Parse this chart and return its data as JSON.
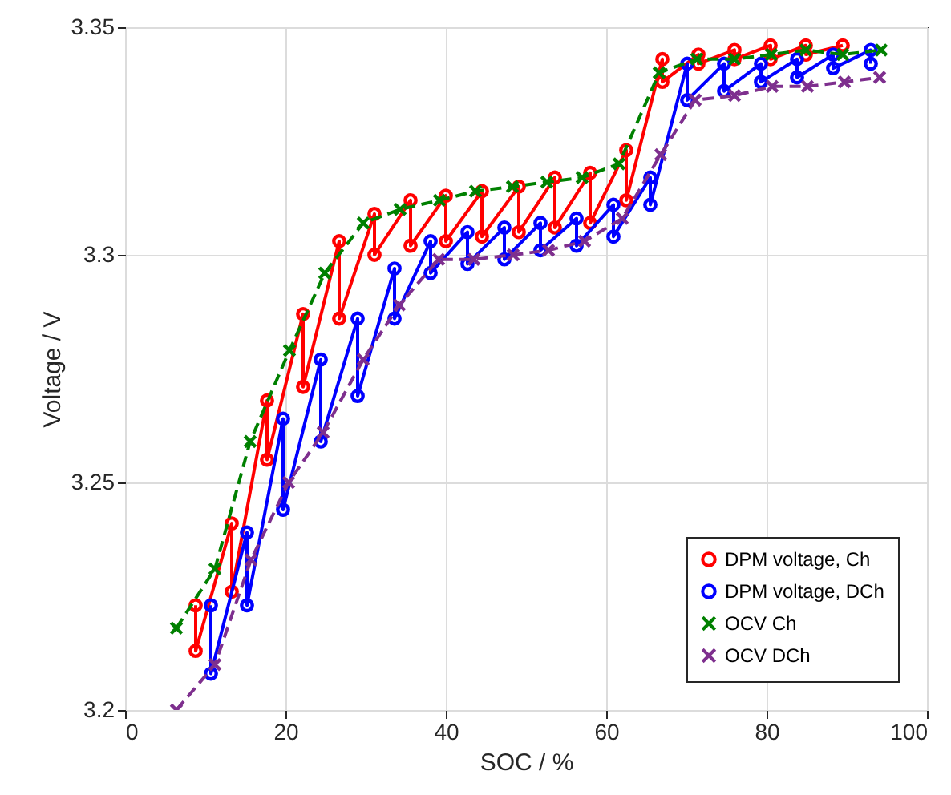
{
  "chart_data": {
    "type": "line",
    "xlabel": "SOC / %",
    "ylabel": "Voltage / V",
    "xlim": [
      0,
      100
    ],
    "xticks": [
      0,
      20,
      40,
      60,
      80,
      100
    ],
    "ylim": [
      3.2,
      3.35
    ],
    "yticks": [
      3.2,
      3.25,
      3.3,
      3.35
    ],
    "grid": true,
    "legend": "bottom right",
    "series": [
      {
        "name": "DPM voltage, Ch",
        "color": "#ff0000",
        "marker": "circle",
        "line_style": "solid",
        "x": [
          8.8,
          8.8,
          13.3,
          13.3,
          17.7,
          17.7,
          22.2,
          22.2,
          26.7,
          26.7,
          31.1,
          31.1,
          35.6,
          35.6,
          40.0,
          40.0,
          44.5,
          44.5,
          49.1,
          49.1,
          53.6,
          53.6,
          58.0,
          58.0,
          62.5,
          62.5,
          67.0,
          67.0,
          71.5,
          71.5,
          76.0,
          76.0,
          80.5,
          80.5,
          84.9,
          84.9,
          89.5
        ],
        "values": [
          3.223,
          3.213,
          3.241,
          3.226,
          3.268,
          3.255,
          3.287,
          3.271,
          3.303,
          3.286,
          3.309,
          3.3,
          3.312,
          3.302,
          3.313,
          3.303,
          3.314,
          3.304,
          3.315,
          3.305,
          3.317,
          3.306,
          3.318,
          3.307,
          3.323,
          3.312,
          3.343,
          3.338,
          3.344,
          3.342,
          3.345,
          3.343,
          3.346,
          3.343,
          3.346,
          3.344,
          3.346
        ]
      },
      {
        "name": "DPM voltage, DCh",
        "color": "#0000ff",
        "marker": "circle",
        "line_style": "solid",
        "x": [
          93.0,
          93.0,
          88.3,
          88.3,
          83.8,
          83.8,
          79.3,
          79.3,
          74.7,
          74.7,
          70.1,
          70.1,
          65.5,
          65.5,
          60.9,
          60.9,
          56.3,
          56.3,
          51.8,
          51.8,
          47.3,
          47.3,
          42.7,
          42.7,
          38.1,
          38.1,
          33.6,
          33.6,
          29.0,
          29.0,
          24.4,
          24.4,
          19.7,
          19.7,
          15.2,
          15.2,
          10.7,
          10.7
        ],
        "values": [
          3.342,
          3.345,
          3.341,
          3.344,
          3.339,
          3.343,
          3.338,
          3.342,
          3.336,
          3.342,
          3.334,
          3.342,
          3.311,
          3.317,
          3.304,
          3.311,
          3.302,
          3.308,
          3.301,
          3.307,
          3.299,
          3.306,
          3.298,
          3.305,
          3.296,
          3.303,
          3.286,
          3.297,
          3.269,
          3.286,
          3.259,
          3.277,
          3.244,
          3.264,
          3.223,
          3.239,
          3.208,
          3.223
        ]
      },
      {
        "name": "OCV Ch",
        "color": "#008000",
        "marker": "cross",
        "line_style": "dashed",
        "x": [
          6.4,
          11.2,
          15.6,
          20.5,
          24.9,
          29.7,
          34.3,
          39.2,
          43.7,
          48.3,
          52.6,
          57.0,
          61.6,
          66.6,
          71.3,
          76.0,
          80.6,
          84.9,
          89.5,
          94.3
        ],
        "values": [
          3.218,
          3.231,
          3.259,
          3.279,
          3.296,
          3.307,
          3.31,
          3.312,
          3.314,
          3.315,
          3.316,
          3.317,
          3.32,
          3.34,
          3.343,
          3.343,
          3.344,
          3.345,
          3.344,
          3.345
        ]
      },
      {
        "name": "OCV DCh",
        "color": "#7e2f8e",
        "marker": "cross",
        "line_style": "dashed",
        "x": [
          6.4,
          11.2,
          15.7,
          20.4,
          24.7,
          29.7,
          34.2,
          39.1,
          43.5,
          48.4,
          52.8,
          57.3,
          62.0,
          66.8,
          71.1,
          76.0,
          80.7,
          85.1,
          89.7,
          94.1
        ],
        "values": [
          3.2,
          3.21,
          3.233,
          3.25,
          3.261,
          3.277,
          3.289,
          3.299,
          3.299,
          3.3,
          3.301,
          3.303,
          3.308,
          3.322,
          3.334,
          3.335,
          3.337,
          3.337,
          3.338,
          3.339
        ]
      }
    ]
  }
}
